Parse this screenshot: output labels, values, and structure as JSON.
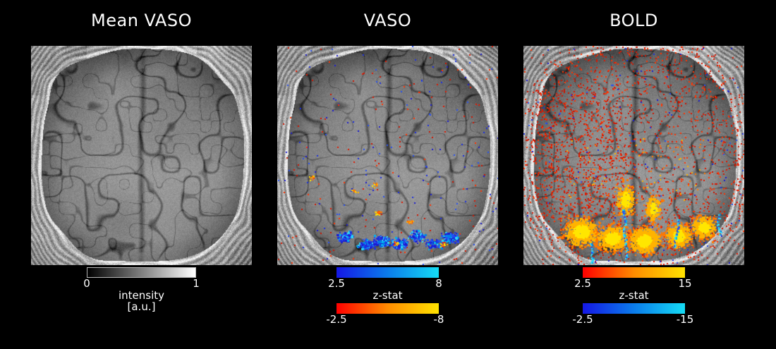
{
  "figure": {
    "background_color": "#000000",
    "text_color": "#ffffff",
    "panels": [
      {
        "title": "Mean VASO",
        "overlay": "none",
        "colorbars": [
          {
            "gradient": "grayscale",
            "left_label": "0",
            "right_label": "1"
          }
        ],
        "caption_lines": [
          "intensity",
          "[a.u.]"
        ]
      },
      {
        "title": "VASO",
        "overlay": "vaso",
        "colorbars": [
          {
            "gradient": "blue_lightblue",
            "left_label": "2.5",
            "right_label": "8"
          },
          {
            "gradient": "red_yellow",
            "left_label": "-2.5",
            "right_label": "-8"
          }
        ],
        "caption_lines": [
          "z-stat"
        ]
      },
      {
        "title": "BOLD",
        "overlay": "bold",
        "colorbars": [
          {
            "gradient": "red_yellow",
            "left_label": "2.5",
            "right_label": "15"
          },
          {
            "gradient": "blue_lightblue",
            "left_label": "-2.5",
            "right_label": "-15"
          }
        ],
        "caption_lines": [
          "z-stat"
        ]
      }
    ],
    "colors": {
      "grayscale": [
        "#000000",
        "#ffffff"
      ],
      "blue_lightblue": [
        "#1417e6",
        "#0b7ceb",
        "#15dcf5"
      ],
      "red_yellow": [
        "#ff0000",
        "#ff8c00",
        "#ffe300"
      ],
      "positive_dot": "#e02010",
      "negative_dot": "#2233ee"
    }
  }
}
